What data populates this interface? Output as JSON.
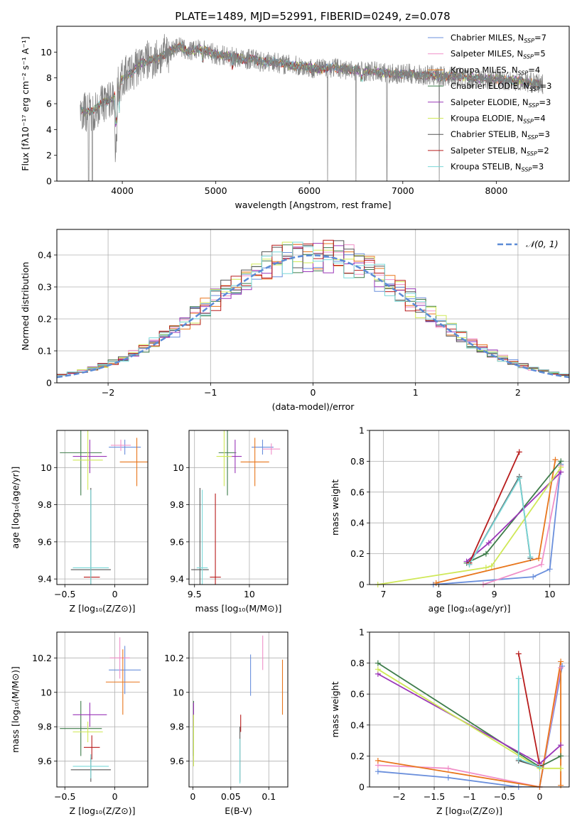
{
  "figure_title": "PLATE=1489, MJD=52991, FIBERID=0249, z=0.078",
  "colors": {
    "Chabrier MILES": "#6a8fdc",
    "Salpeter MILES": "#f08fc8",
    "Kroupa MILES": "#e8761c",
    "Chabrier ELODIE": "#3e7c4a",
    "Salpeter ELODIE": "#9a36b8",
    "Kroupa ELODIE": "#cfe857",
    "Chabrier STELIB": "#555555",
    "Salpeter STELIB": "#b81c1c",
    "Kroupa STELIB": "#79d8d8",
    "data": "#808080",
    "normal": "#5b8bd6"
  },
  "chart_data": [
    {
      "id": "spectrum",
      "type": "line",
      "xlabel": "wavelength [Angstrom, rest frame]",
      "ylabel": "Flux [fλ10⁻¹⁷ erg cm⁻² s⁻¹ A⁻¹]",
      "xlim": [
        3300,
        8780
      ],
      "ylim": [
        0,
        12
      ],
      "xticks": [
        4000,
        5000,
        6000,
        7000,
        8000
      ],
      "yticks": [
        0,
        2,
        4,
        6,
        8,
        10
      ],
      "legend_position": "top-right",
      "legend": [
        "Chabrier MILES, N_SSP=7",
        "Salpeter MILES, N_SSP=5",
        "Kroupa MILES, N_SSP=4",
        "Chabrier ELODIE, N_SSP=3",
        "Salpeter ELODIE, N_SSP=3",
        "Kroupa ELODIE, N_SSP=4",
        "Chabrier STELIB, N_SSP=3",
        "Salpeter STELIB, N_SSP=2",
        "Kroupa STELIB, N_SSP=3"
      ],
      "model_continuum": {
        "x": [
          3550,
          3600,
          3700,
          3800,
          3900,
          4000,
          4100,
          4200,
          4300,
          4400,
          4500,
          4600,
          4700,
          4800,
          4900,
          5000,
          5100,
          5200,
          5300,
          5400,
          5500,
          5600,
          5700,
          5800,
          5900,
          6000,
          6100,
          6200,
          6300,
          6400,
          6500,
          6600,
          6700,
          6800,
          6900,
          7000,
          7100,
          7200,
          7300,
          7400,
          7500,
          7600,
          7700,
          7800,
          7900,
          8000,
          8100,
          8200,
          8300,
          8400,
          8500
        ],
        "y": [
          5.6,
          5.4,
          5.5,
          6.1,
          6.4,
          8.0,
          8.4,
          9.2,
          9.4,
          9.6,
          10.0,
          10.5,
          10.0,
          10.2,
          10.1,
          9.8,
          9.7,
          9.6,
          9.4,
          9.5,
          9.2,
          9.3,
          9.1,
          9.0,
          8.9,
          8.8,
          8.7,
          8.8,
          8.8,
          8.6,
          8.6,
          8.5,
          8.5,
          8.4,
          8.3,
          8.3,
          8.3,
          8.2,
          8.2,
          8.1,
          8.1,
          8.1,
          8.0,
          8.0,
          7.9,
          7.9,
          7.8,
          7.8,
          7.7,
          7.6,
          7.5
        ]
      }
    },
    {
      "id": "residuals",
      "type": "line",
      "xlabel": "(data-model)/error",
      "ylabel": "Normed distribution",
      "xlim": [
        -2.5,
        2.5
      ],
      "ylim": [
        0,
        0.48
      ],
      "xticks": [
        -2,
        -1,
        0,
        1,
        2
      ],
      "yticks": [
        0.0,
        0.1,
        0.2,
        0.3,
        0.4
      ],
      "legend": [
        "𝒩(0, 1)"
      ],
      "legend_position": "top-right",
      "bin_width": 0.1
    },
    {
      "id": "age-vs-Z",
      "type": "scatter",
      "xlabel": "Z [log₁₀(Z/Z⊙)]",
      "ylabel": "age  [log₁₀(age/yr)]",
      "xlim": [
        -0.58,
        0.33
      ],
      "ylim": [
        9.37,
        10.2
      ],
      "xticks": [
        -0.5,
        0.0
      ],
      "yticks": [
        9.4,
        9.6,
        9.8,
        10.0
      ],
      "points": [
        {
          "model": "Chabrier MILES",
          "x": 0.1,
          "y": 10.11,
          "xerr": 0.16,
          "yerr": 0.04
        },
        {
          "model": "Salpeter MILES",
          "x": 0.06,
          "y": 10.12,
          "xerr": 0.1,
          "yerr": 0.03
        },
        {
          "model": "Kroupa MILES",
          "x": 0.22,
          "y": 10.03,
          "xerr": 0.17,
          "yerr": 0.13
        },
        {
          "model": "Chabrier ELODIE",
          "x": -0.34,
          "y": 10.08,
          "xerr": 0.21,
          "yerr": 0.23
        },
        {
          "model": "Salpeter ELODIE",
          "x": -0.25,
          "y": 10.06,
          "xerr": 0.17,
          "yerr": 0.09
        },
        {
          "model": "Kroupa ELODIE",
          "x": -0.27,
          "y": 10.04,
          "xerr": 0.15,
          "yerr": 0.16
        },
        {
          "model": "Chabrier STELIB",
          "x": -0.24,
          "y": 9.45,
          "xerr": 0.2,
          "yerr": 0.44
        },
        {
          "model": "Salpeter STELIB",
          "x": -0.23,
          "y": 9.41,
          "xerr": 0.08,
          "yerr": 0.0
        },
        {
          "model": "Kroupa STELIB",
          "x": -0.24,
          "y": 9.46,
          "xerr": 0.18,
          "yerr": 0.42
        }
      ]
    },
    {
      "id": "age-vs-mass",
      "type": "scatter",
      "xlabel": "mass [log₁₀(M/M⊙)]",
      "ylabel": "",
      "xlim": [
        9.45,
        10.35
      ],
      "ylim": [
        9.37,
        10.2
      ],
      "xticks": [
        9.5,
        10.0
      ],
      "yticks": [
        9.4,
        9.6,
        9.8,
        10.0
      ],
      "points": [
        {
          "model": "Chabrier MILES",
          "x": 10.12,
          "y": 10.11,
          "xerr": 0.1,
          "yerr": 0.04
        },
        {
          "model": "Salpeter MILES",
          "x": 10.2,
          "y": 10.1,
          "xerr": 0.08,
          "yerr": 0.03
        },
        {
          "model": "Kroupa MILES",
          "x": 10.05,
          "y": 10.03,
          "xerr": 0.13,
          "yerr": 0.13
        },
        {
          "model": "Chabrier ELODIE",
          "x": 9.8,
          "y": 10.08,
          "xerr": 0.08,
          "yerr": 0.23
        },
        {
          "model": "Salpeter ELODIE",
          "x": 9.87,
          "y": 10.06,
          "xerr": 0.06,
          "yerr": 0.09
        },
        {
          "model": "Kroupa ELODIE",
          "x": 9.77,
          "y": 10.06,
          "xerr": 0.07,
          "yerr": 0.16
        },
        {
          "model": "Chabrier STELIB",
          "x": 9.55,
          "y": 9.45,
          "xerr": 0.08,
          "yerr": 0.44
        },
        {
          "model": "Salpeter STELIB",
          "x": 9.69,
          "y": 9.41,
          "xerr": 0.05,
          "yerr": 0.45
        },
        {
          "model": "Kroupa STELIB",
          "x": 9.57,
          "y": 9.46,
          "xerr": 0.05,
          "yerr": 0.42
        }
      ]
    },
    {
      "id": "weight-vs-age",
      "type": "line",
      "xlabel": "age  [log₁₀(age/yr)]",
      "ylabel": "mass weight",
      "xlim": [
        6.75,
        10.35
      ],
      "ylim": [
        0,
        1.0
      ],
      "xticks": [
        7,
        8,
        9,
        10
      ],
      "yticks": [
        0.0,
        0.2,
        0.4,
        0.6,
        0.8,
        1.0
      ],
      "series": [
        {
          "model": "Chabrier MILES",
          "x": [
            7.9,
            9.7,
            10.0,
            10.2
          ],
          "y": [
            0.0,
            0.05,
            0.1,
            0.78
          ]
        },
        {
          "model": "Salpeter MILES",
          "x": [
            8.8,
            9.85,
            10.2
          ],
          "y": [
            0.0,
            0.13,
            0.77
          ]
        },
        {
          "model": "Kroupa MILES",
          "x": [
            7.95,
            9.8,
            10.1
          ],
          "y": [
            0.01,
            0.17,
            0.81
          ]
        },
        {
          "model": "Chabrier ELODIE",
          "x": [
            8.5,
            8.85,
            10.2
          ],
          "y": [
            0.14,
            0.2,
            0.8
          ]
        },
        {
          "model": "Salpeter ELODIE",
          "x": [
            8.5,
            8.9,
            10.2
          ],
          "y": [
            0.15,
            0.27,
            0.73
          ]
        },
        {
          "model": "Kroupa ELODIE",
          "x": [
            6.9,
            8.85,
            8.95,
            10.2
          ],
          "y": [
            0.0,
            0.11,
            0.12,
            0.76
          ]
        },
        {
          "model": "Chabrier STELIB",
          "x": [
            8.55,
            9.45,
            9.65
          ],
          "y": [
            0.13,
            0.7,
            0.17
          ]
        },
        {
          "model": "Salpeter STELIB",
          "x": [
            8.55,
            9.45
          ],
          "y": [
            0.14,
            0.86
          ]
        },
        {
          "model": "Kroupa STELIB",
          "x": [
            8.55,
            9.45,
            9.65
          ],
          "y": [
            0.13,
            0.69,
            0.18
          ]
        }
      ]
    },
    {
      "id": "mass-vs-Z",
      "type": "scatter",
      "xlabel": "Z [log₁₀(Z/Z⊙)]",
      "ylabel": "mass [log₁₀(M/M⊙)]",
      "xlim": [
        -0.58,
        0.33
      ],
      "ylim": [
        9.45,
        10.35
      ],
      "xticks": [
        -0.5,
        0.0
      ],
      "yticks": [
        9.6,
        9.8,
        10.0,
        10.2
      ],
      "points": [
        {
          "model": "Chabrier MILES",
          "x": 0.1,
          "y": 10.13,
          "xerr": 0.16,
          "yerr": 0.14
        },
        {
          "model": "Salpeter MILES",
          "x": 0.05,
          "y": 10.2,
          "xerr": 0.1,
          "yerr": 0.12
        },
        {
          "model": "Kroupa MILES",
          "x": 0.08,
          "y": 10.06,
          "xerr": 0.17,
          "yerr": 0.19
        },
        {
          "model": "Chabrier ELODIE",
          "x": -0.34,
          "y": 9.79,
          "xerr": 0.21,
          "yerr": 0.16
        },
        {
          "model": "Salpeter ELODIE",
          "x": -0.25,
          "y": 9.87,
          "xerr": 0.17,
          "yerr": 0.07
        },
        {
          "model": "Kroupa ELODIE",
          "x": -0.27,
          "y": 9.77,
          "xerr": 0.15,
          "yerr": 0.06
        },
        {
          "model": "Chabrier STELIB",
          "x": -0.24,
          "y": 9.55,
          "xerr": 0.2,
          "yerr": 0.07
        },
        {
          "model": "Salpeter STELIB",
          "x": -0.23,
          "y": 9.68,
          "xerr": 0.08,
          "yerr": 0.07
        },
        {
          "model": "Kroupa STELIB",
          "x": -0.24,
          "y": 9.57,
          "xerr": 0.18,
          "yerr": 0.07
        }
      ]
    },
    {
      "id": "mass-vs-EBV",
      "type": "scatter",
      "xlabel": "E(B-V)",
      "ylabel": "",
      "xlim": [
        -0.005,
        0.125
      ],
      "ylim": [
        9.45,
        10.35
      ],
      "xticks": [
        0.0,
        0.05,
        0.1
      ],
      "yticks": [
        9.6,
        9.8,
        10.0,
        10.2
      ],
      "points": [
        {
          "model": "Chabrier MILES",
          "x": 0.076,
          "y": 10.1,
          "yerr": 0.12
        },
        {
          "model": "Salpeter MILES",
          "x": 0.092,
          "y": 10.23,
          "yerr": 0.1
        },
        {
          "model": "Kroupa MILES",
          "x": 0.118,
          "y": 10.03,
          "yerr": 0.16
        },
        {
          "model": "Chabrier ELODIE",
          "x": 0.001,
          "y": 9.79,
          "yerr": 0.16
        },
        {
          "model": "Salpeter ELODIE",
          "x": 0.001,
          "y": 9.87,
          "yerr": 0.07
        },
        {
          "model": "Kroupa ELODIE",
          "x": 0.001,
          "y": 9.72,
          "yerr": 0.15
        },
        {
          "model": "Chabrier STELIB",
          "x": 0.062,
          "y": 9.64,
          "yerr": 0.16
        },
        {
          "model": "Salpeter STELIB",
          "x": 0.063,
          "y": 9.82,
          "yerr": 0.05
        },
        {
          "model": "Kroupa STELIB",
          "x": 0.062,
          "y": 9.6,
          "yerr": 0.13
        }
      ]
    },
    {
      "id": "weight-vs-Z",
      "type": "line",
      "xlabel": "Z [log₁₀(Z/Z⊙)]",
      "ylabel": "mass weight",
      "xlim": [
        -2.42,
        0.42
      ],
      "ylim": [
        0,
        1.0
      ],
      "xticks": [
        -2.0,
        -1.5,
        -1.0,
        -0.5,
        0.0
      ],
      "yticks": [
        0.0,
        0.2,
        0.4,
        0.6,
        0.8,
        1.0
      ],
      "series": [
        {
          "model": "Chabrier MILES",
          "x": [
            -2.3,
            -1.3,
            -0.3,
            0.0,
            0.32
          ],
          "y": [
            0.1,
            0.06,
            0.0,
            0.0,
            0.78
          ]
        },
        {
          "model": "Salpeter MILES",
          "x": [
            -2.3,
            -1.3,
            0.0,
            0.3
          ],
          "y": [
            0.14,
            0.12,
            0.0,
            0.77
          ]
        },
        {
          "model": "Kroupa MILES",
          "x": [
            -2.3,
            0.0,
            0.3,
            0.3
          ],
          "y": [
            0.17,
            0.0,
            0.81,
            0.01
          ]
        },
        {
          "model": "Chabrier ELODIE",
          "x": [
            -2.3,
            0.0,
            0.3
          ],
          "y": [
            0.8,
            0.13,
            0.2
          ]
        },
        {
          "model": "Salpeter ELODIE",
          "x": [
            -2.3,
            0.0,
            0.3
          ],
          "y": [
            0.73,
            0.15,
            0.27
          ]
        },
        {
          "model": "Kroupa ELODIE",
          "x": [
            -2.3,
            0.0,
            0.3
          ],
          "y": [
            0.76,
            0.12,
            0.12
          ]
        },
        {
          "model": "Chabrier STELIB",
          "x": [
            -0.3,
            0.0
          ],
          "y": [
            0.17,
            0.13
          ]
        },
        {
          "model": "Salpeter STELIB",
          "x": [
            -0.3,
            0.0
          ],
          "y": [
            0.86,
            0.14
          ]
        },
        {
          "model": "Kroupa STELIB",
          "x": [
            -0.3,
            -0.3,
            0.0
          ],
          "y": [
            0.7,
            0.18,
            0.13
          ]
        }
      ]
    }
  ]
}
